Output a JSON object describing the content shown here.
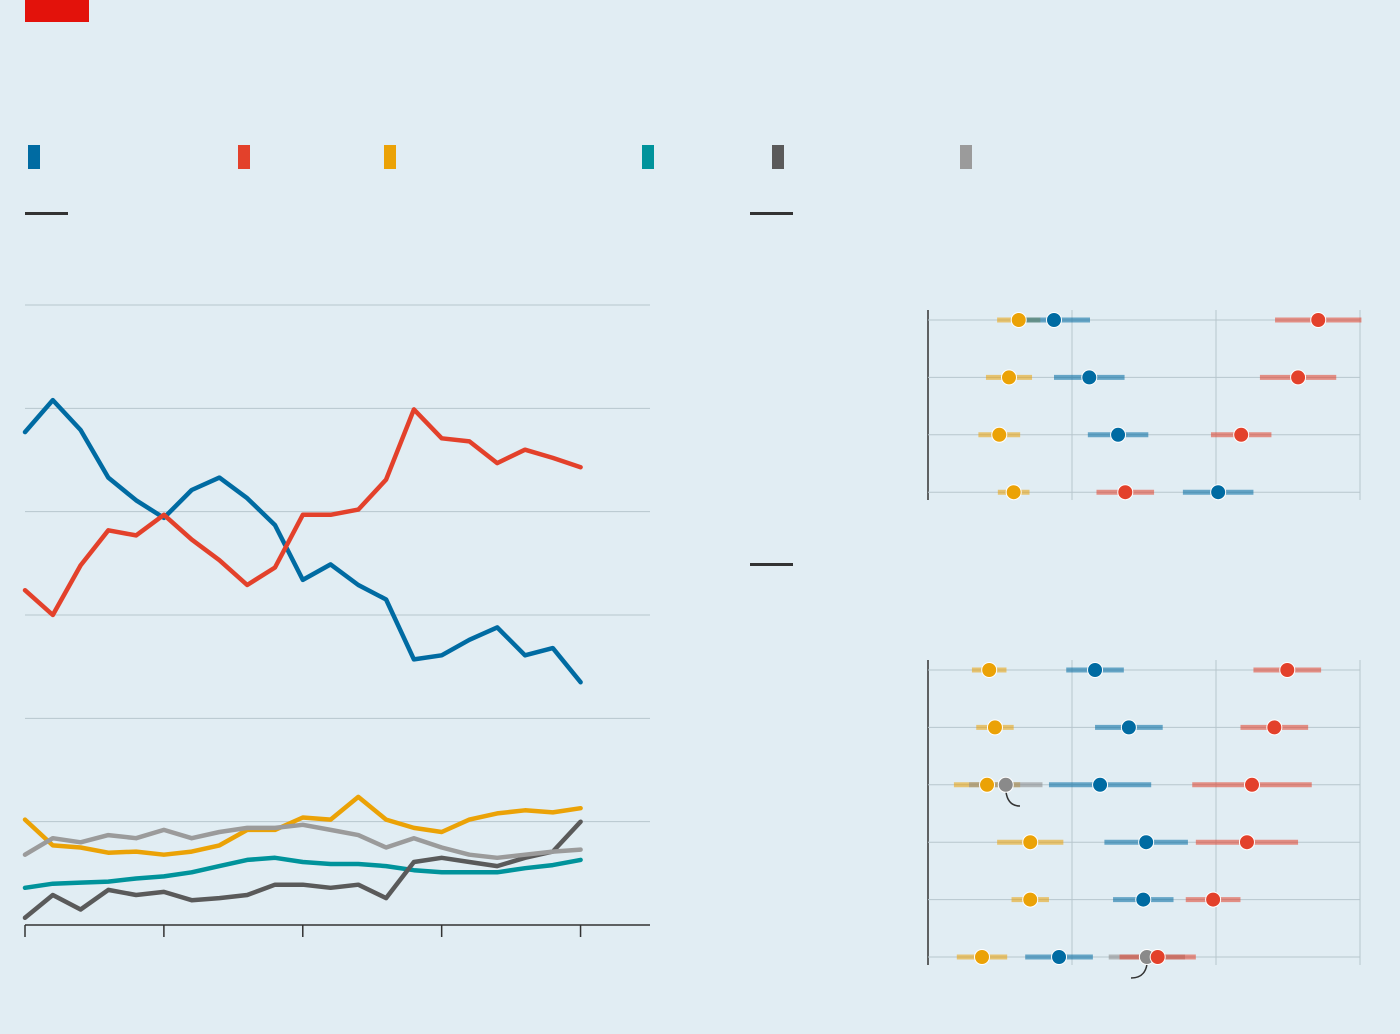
{
  "chart_data": [
    {
      "type": "line",
      "x": [
        0,
        0.2,
        0.4,
        0.6,
        0.8,
        1,
        1.2,
        1.4,
        1.6,
        1.8,
        2,
        2.2,
        2.4,
        2.6,
        2.8,
        3,
        3.2,
        3.4,
        3.6,
        3.8,
        4
      ],
      "xlim": [
        0,
        4.5
      ],
      "xticks": [
        0,
        1,
        2,
        3,
        4
      ],
      "ylim": [
        0,
        60
      ],
      "yticks": [
        0,
        10,
        20,
        30,
        40,
        50,
        60
      ],
      "grid": true,
      "series": [
        {
          "color": "#006ba2",
          "values": [
            47.7,
            50.8,
            47.9,
            43.3,
            41.1,
            39.4,
            42.1,
            43.3,
            41.3,
            38.7,
            33.4,
            34.9,
            32.9,
            31.5,
            25.7,
            26.1,
            27.6,
            28.8,
            26.1,
            26.8,
            23.5
          ]
        },
        {
          "color": "#e3412b",
          "values": [
            32.4,
            30.0,
            34.8,
            38.2,
            37.7,
            39.7,
            37.3,
            35.3,
            32.9,
            34.6,
            39.7,
            39.7,
            40.2,
            43.1,
            49.9,
            47.1,
            46.8,
            44.7,
            46.0,
            45.2,
            44.3
          ]
        },
        {
          "color": "#eba206",
          "values": [
            10.2,
            7.7,
            7.5,
            7.0,
            7.1,
            6.8,
            7.1,
            7.7,
            9.2,
            9.2,
            10.4,
            10.2,
            12.4,
            10.2,
            9.4,
            9.0,
            10.2,
            10.8,
            11.1,
            10.9,
            11.3
          ]
        },
        {
          "color": "#00939b",
          "values": [
            3.6,
            4.0,
            4.1,
            4.2,
            4.5,
            4.7,
            5.1,
            5.7,
            6.3,
            6.5,
            6.1,
            5.9,
            5.9,
            5.7,
            5.3,
            5.1,
            5.1,
            5.1,
            5.5,
            5.8,
            6.3
          ]
        },
        {
          "color": "#5a5a5a",
          "values": [
            0.7,
            2.9,
            1.5,
            3.4,
            2.9,
            3.2,
            2.4,
            2.6,
            2.9,
            3.9,
            3.9,
            3.6,
            3.9,
            2.6,
            6.1,
            6.5,
            6.1,
            5.7,
            6.5,
            7.1,
            10.0
          ]
        },
        {
          "color": "#9b9b9b",
          "values": [
            6.8,
            8.4,
            8.0,
            8.7,
            8.4,
            9.2,
            8.4,
            9.0,
            9.4,
            9.4,
            9.7,
            9.2,
            8.7,
            7.5,
            8.4,
            7.5,
            6.8,
            6.5,
            6.8,
            7.1,
            7.3
          ]
        }
      ]
    },
    {
      "type": "dot",
      "xlim": [
        0,
        60
      ],
      "xticks": [
        0,
        20,
        40,
        60
      ],
      "grid": true,
      "series": [
        {
          "color": "#eba206",
          "values": [
            12.6,
            11.25,
            9.9,
            11.9
          ],
          "errors": [
            3,
            3.2,
            2.9,
            2.2
          ]
        },
        {
          "color": "#006ba2",
          "values": [
            17.5,
            22.4,
            26.4,
            40.3
          ],
          "errors": [
            5,
            4.9,
            4.2,
            4.9
          ]
        },
        {
          "color": "#e3412b",
          "values": [
            54.2,
            51.4,
            43.5,
            27.4
          ],
          "errors": [
            6,
            5.3,
            4.2,
            4
          ]
        }
      ]
    },
    {
      "type": "dot",
      "xlim": [
        0,
        60
      ],
      "xticks": [
        0,
        20,
        40,
        60
      ],
      "grid": true,
      "series": [
        {
          "color": "#eba206",
          "values": [
            8.5,
            9.3,
            8.2,
            14.2,
            14.2,
            7.5
          ],
          "errors": [
            2.4,
            2.6,
            4.6,
            4.6,
            2.6,
            3.5
          ]
        },
        {
          "color": "#8a8a8a",
          "values": [
            null,
            null,
            10.8,
            null,
            null,
            30.4
          ],
          "errors": [
            null,
            null,
            5.1,
            null,
            null,
            5.3
          ]
        },
        {
          "color": "#006ba2",
          "values": [
            23.2,
            27.9,
            23.9,
            30.3,
            29.9,
            18.2
          ],
          "errors": [
            4,
            4.7,
            7.1,
            5.8,
            4.2,
            4.7
          ]
        },
        {
          "color": "#e3412b",
          "values": [
            49.9,
            48.1,
            45,
            44.3,
            39.6,
            31.9
          ],
          "errors": [
            4.7,
            4.7,
            8.3,
            7.1,
            3.8,
            5.3
          ]
        }
      ]
    }
  ]
}
